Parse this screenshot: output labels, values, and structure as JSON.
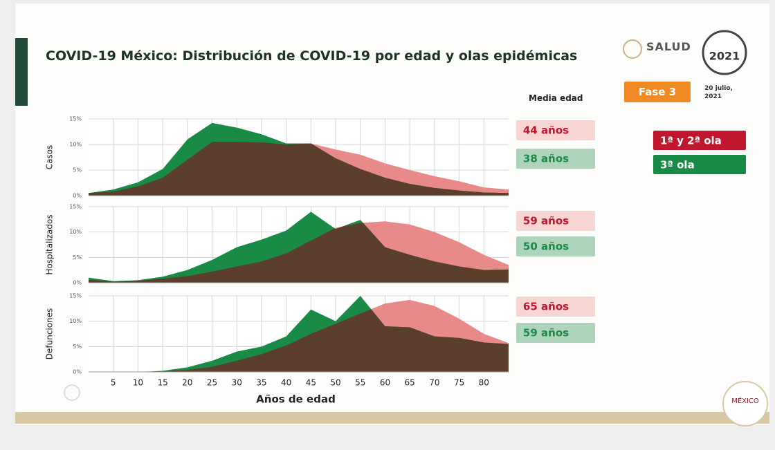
{
  "header": {
    "title": "COVID-19 México: Distribución de COVID-19 por edad y olas epidémicas",
    "column_title": "Media edad",
    "ministry": "SALUD",
    "phase": "Fase 3",
    "date": "20 julio, 2021",
    "logo_year": "2021",
    "footer_logo": "MÉXICO"
  },
  "chart_data": [
    {
      "type": "area",
      "ylabel": "Casos",
      "grid": true,
      "x": [
        0,
        5,
        10,
        15,
        20,
        25,
        30,
        35,
        40,
        45,
        50,
        55,
        60,
        65,
        70,
        75,
        80,
        85
      ],
      "xlim": [
        0,
        85
      ],
      "xticks": [
        5,
        10,
        15,
        20,
        25,
        30,
        35,
        40,
        45,
        50,
        55,
        60,
        65,
        70,
        75,
        80
      ],
      "ylim": [
        0,
        15
      ],
      "yticks": [
        {
          "value": 0,
          "label": "0%"
        },
        {
          "value": 5,
          "label": "5%"
        },
        {
          "value": 10,
          "label": "10%"
        },
        {
          "value": 15,
          "label": "15%"
        }
      ],
      "series": [
        {
          "name": "1ª y 2ª ola",
          "color": "#e8898a",
          "legend_color": "#c0172e",
          "median_label": "44 años",
          "values": [
            0.5,
            0.8,
            1.8,
            3.5,
            7.0,
            10.5,
            10.5,
            10.4,
            10.0,
            10.2,
            9.0,
            8.0,
            6.3,
            5.0,
            3.8,
            2.8,
            1.6,
            1.2
          ]
        },
        {
          "name": "3ª ola",
          "color": "#1a8a47",
          "legend_color": "#1a8a47",
          "median_label": "38 años",
          "values": [
            0.5,
            1.2,
            2.6,
            5.2,
            11.0,
            14.2,
            13.3,
            12.0,
            10.2,
            10.2,
            7.3,
            5.2,
            3.5,
            2.3,
            1.5,
            1.0,
            0.6,
            0.5
          ]
        }
      ]
    },
    {
      "type": "area",
      "ylabel": "Hospitalizados",
      "grid": true,
      "x": [
        0,
        5,
        10,
        15,
        20,
        25,
        30,
        35,
        40,
        45,
        50,
        55,
        60,
        65,
        70,
        75,
        80,
        85
      ],
      "xlim": [
        0,
        85
      ],
      "xticks": [
        5,
        10,
        15,
        20,
        25,
        30,
        35,
        40,
        45,
        50,
        55,
        60,
        65,
        70,
        75,
        80
      ],
      "ylim": [
        0,
        15
      ],
      "yticks": [
        {
          "value": 0,
          "label": "0%"
        },
        {
          "value": 5,
          "label": "5%"
        },
        {
          "value": 10,
          "label": "10%"
        },
        {
          "value": 15,
          "label": "15%"
        }
      ],
      "series": [
        {
          "color": "#e8898a",
          "legend_color": "#c0172e",
          "median_label": "59 años",
          "values": [
            0.6,
            0.2,
            0.4,
            0.8,
            1.3,
            2.2,
            3.2,
            4.2,
            5.8,
            8.3,
            10.8,
            11.8,
            12.1,
            11.5,
            10.0,
            8.0,
            5.5,
            3.5
          ]
        },
        {
          "color": "#1a8a47",
          "legend_color": "#1a8a47",
          "median_label": "50 años",
          "values": [
            1.0,
            0.3,
            0.5,
            1.2,
            2.5,
            4.5,
            7.0,
            8.5,
            10.3,
            14.0,
            10.6,
            12.4,
            7.0,
            5.5,
            4.2,
            3.2,
            2.5,
            2.6
          ]
        }
      ]
    },
    {
      "type": "area",
      "ylabel": "Defunciones",
      "xlabel": "Años de edad",
      "grid": true,
      "x": [
        0,
        5,
        10,
        15,
        20,
        25,
        30,
        35,
        40,
        45,
        50,
        55,
        60,
        65,
        70,
        75,
        80,
        85
      ],
      "xlim": [
        0,
        85
      ],
      "xticks": [
        5,
        10,
        15,
        20,
        25,
        30,
        35,
        40,
        45,
        50,
        55,
        60,
        65,
        70,
        75,
        80
      ],
      "ylim": [
        0,
        15
      ],
      "yticks": [
        {
          "value": 0,
          "label": "0%"
        },
        {
          "value": 5,
          "label": "5%"
        },
        {
          "value": 10,
          "label": "10%"
        },
        {
          "value": 15,
          "label": "15%"
        }
      ],
      "series": [
        {
          "color": "#e8898a",
          "legend_color": "#c0172e",
          "median_label": "65 años",
          "values": [
            0,
            0,
            0,
            0.1,
            0.4,
            1.0,
            2.2,
            3.5,
            5.2,
            7.5,
            9.5,
            11.5,
            13.5,
            14.2,
            13.0,
            10.5,
            7.5,
            5.7
          ]
        },
        {
          "color": "#1a8a47",
          "legend_color": "#1a8a47",
          "median_label": "59 años",
          "values": [
            0,
            0,
            0,
            0.2,
            0.9,
            2.2,
            4.0,
            5.0,
            7.0,
            12.3,
            10.0,
            15.0,
            9.0,
            8.8,
            7.0,
            6.7,
            5.8,
            5.5
          ]
        }
      ]
    }
  ]
}
